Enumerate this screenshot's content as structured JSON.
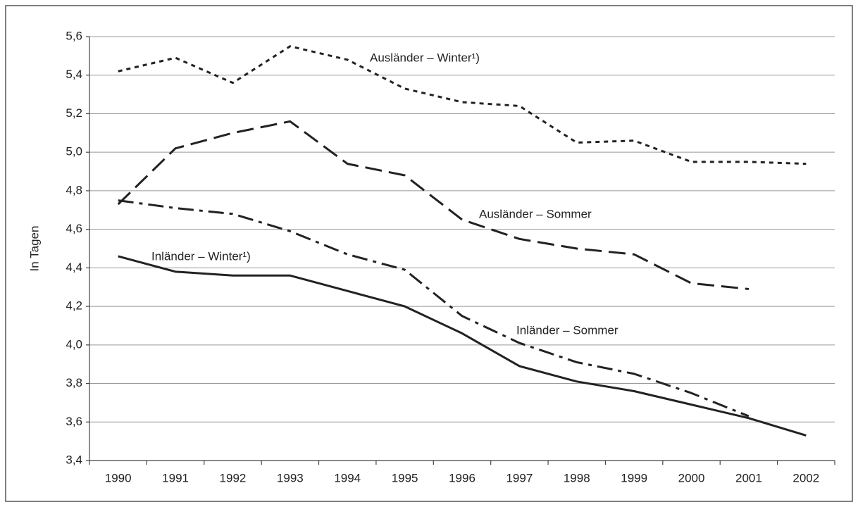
{
  "chart_data": {
    "type": "line",
    "y_label": "In Tagen",
    "categories": [
      "1990",
      "1991",
      "1992",
      "1993",
      "1994",
      "1995",
      "1996",
      "1997",
      "1998",
      "1999",
      "2000",
      "2001",
      "2002"
    ],
    "series": [
      {
        "name": "Ausländer – Winter¹)",
        "color": "#222222",
        "dash": "dotted",
        "values": [
          5.42,
          5.49,
          5.36,
          5.55,
          5.48,
          5.33,
          5.26,
          5.24,
          5.05,
          5.06,
          4.95,
          4.95,
          4.94
        ]
      },
      {
        "name": "Ausländer – Sommer",
        "color": "#222222",
        "dash": "dashed",
        "values": [
          4.73,
          5.02,
          5.1,
          5.16,
          4.94,
          4.88,
          4.65,
          4.55,
          4.5,
          4.47,
          4.32,
          4.29,
          null
        ]
      },
      {
        "name": "Inländer – Sommer",
        "color": "#222222",
        "dash": "dashdot",
        "values": [
          4.75,
          4.71,
          4.68,
          4.59,
          4.47,
          4.39,
          4.15,
          4.01,
          3.91,
          3.85,
          3.75,
          3.63,
          null
        ]
      },
      {
        "name": "Inländer – Winter¹)",
        "color": "#222222",
        "dash": "solid",
        "values": [
          4.46,
          4.38,
          4.36,
          4.36,
          4.28,
          4.2,
          4.06,
          3.89,
          3.81,
          3.76,
          3.69,
          3.62,
          3.53
        ]
      }
    ],
    "ylim": [
      3.4,
      5.6
    ],
    "yticks": [
      {
        "value": 3.4,
        "label": "3,4"
      },
      {
        "value": 3.6,
        "label": "3,6"
      },
      {
        "value": 3.8,
        "label": "3,8"
      },
      {
        "value": 4.0,
        "label": "4,0"
      },
      {
        "value": 4.2,
        "label": "4,2"
      },
      {
        "value": 4.4,
        "label": "4,4"
      },
      {
        "value": 4.6,
        "label": "4,6"
      },
      {
        "value": 4.8,
        "label": "4,8"
      },
      {
        "value": 5.0,
        "label": "5,0"
      },
      {
        "value": 5.2,
        "label": "5,2"
      },
      {
        "value": 5.4,
        "label": "5,4"
      },
      {
        "value": 5.6,
        "label": "5,6"
      }
    ],
    "grid": true
  }
}
